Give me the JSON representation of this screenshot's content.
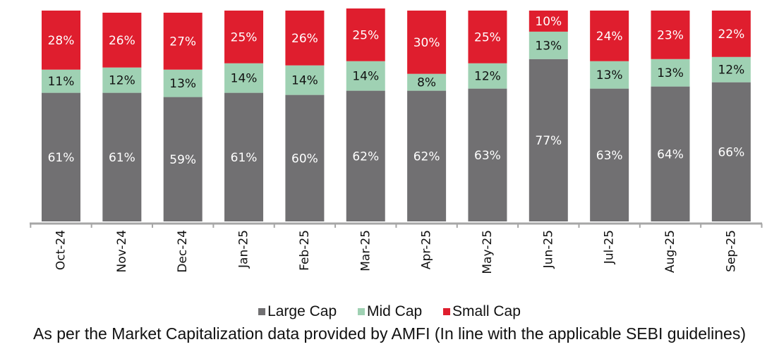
{
  "chart_data": {
    "type": "bar",
    "stacked": true,
    "title": "",
    "xlabel": "",
    "ylabel": "",
    "ylim": [
      0,
      100
    ],
    "grid": false,
    "legend_position": "bottom",
    "categories": [
      "Oct-24",
      "Nov-24",
      "Dec-24",
      "Jan-25",
      "Feb-25",
      "Mar-25",
      "Apr-25",
      "May-25",
      "Jun-25",
      "Jul-25",
      "Aug-25",
      "Sep-25"
    ],
    "series": [
      {
        "name": "Large Cap",
        "color": "#717072",
        "label_color": "#ffffff",
        "values": [
          61,
          61,
          59,
          61,
          60,
          62,
          62,
          63,
          77,
          63,
          64,
          66
        ]
      },
      {
        "name": "Mid Cap",
        "color": "#9fd1b3",
        "label_color": "#111111",
        "values": [
          11,
          12,
          13,
          14,
          14,
          14,
          8,
          12,
          13,
          13,
          13,
          12
        ]
      },
      {
        "name": "Small Cap",
        "color": "#df1e2e",
        "label_color": "#ffffff",
        "values": [
          28,
          26,
          27,
          25,
          26,
          25,
          30,
          25,
          10,
          24,
          23,
          22
        ]
      }
    ],
    "value_suffix": "%",
    "footnote": "As per the Market Capitalization data provided by AMFI (In line with the applicable SEBI guidelines)"
  },
  "legend": {
    "items": [
      {
        "label": "Large Cap",
        "color": "#717072"
      },
      {
        "label": "Mid Cap",
        "color": "#9fd1b3"
      },
      {
        "label": "Small Cap",
        "color": "#df1e2e"
      }
    ]
  },
  "axis_color": "#a6a6a6"
}
